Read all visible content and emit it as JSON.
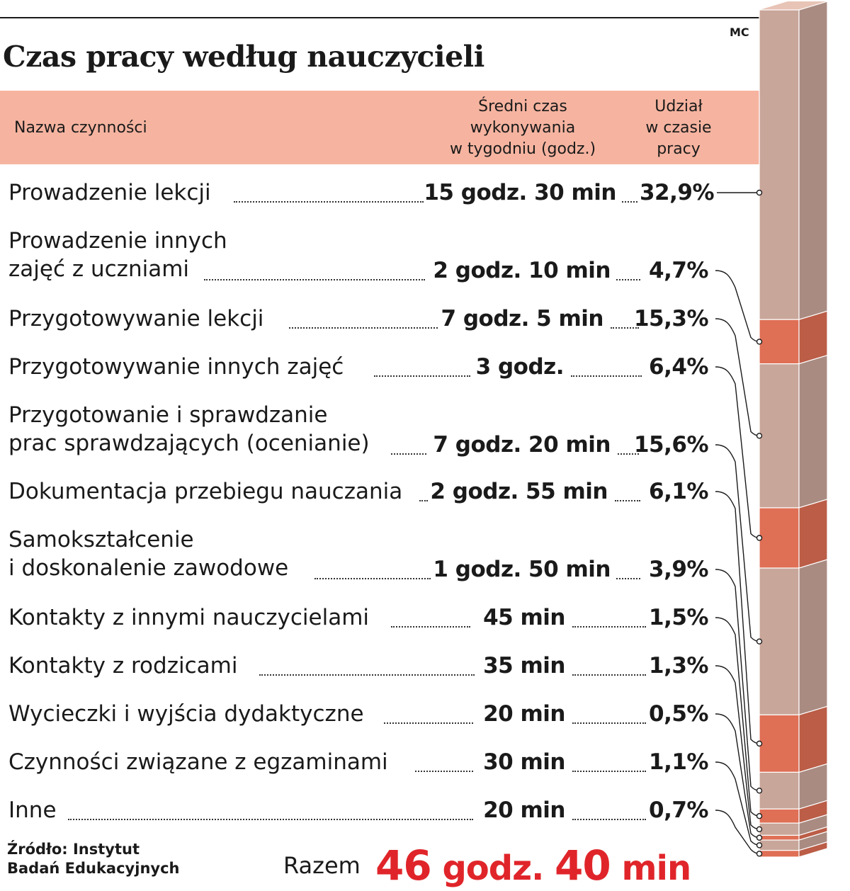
{
  "title": "Czas pracy według nauczycieli",
  "credit": "MC",
  "header": {
    "name": "Nazwa czynności",
    "time": "Średni czas\nwykonywania\nw tygodniu (godz.)",
    "share": "Udział\nw czasie\npracy"
  },
  "colors": {
    "header_band": "#f6b4a0",
    "segment_light": "#c9a69a",
    "segment_dark": "#df6f55",
    "total_accent": "#e0252a"
  },
  "chart_data": {
    "type": "table",
    "title": "Czas pracy według nauczycieli",
    "columns": [
      "Nazwa czynności",
      "Średni czas wykonywania w tygodniu (godz.)",
      "Udział w czasie pracy"
    ],
    "rows": [
      {
        "label": "Prowadzenie lekcji",
        "time": "15 godz. 30 min",
        "share": "32,9%",
        "share_value": 32.9
      },
      {
        "label": "Prowadzenie innych\nzajęć z uczniami",
        "time": "2 godz. 10 min",
        "share": "4,7%",
        "share_value": 4.7
      },
      {
        "label": "Przygotowywanie lekcji",
        "time": "7 godz. 5 min",
        "share": "15,3%",
        "share_value": 15.3
      },
      {
        "label": "Przygotowywanie innych zajęć",
        "time": "3 godz.",
        "share": "6,4%",
        "share_value": 6.4
      },
      {
        "label": "Przygotowanie i sprawdzanie\nprac sprawdzających (ocenianie)",
        "time": "7 godz. 20 min",
        "share": "15,6%",
        "share_value": 15.6
      },
      {
        "label": "Dokumentacja przebiegu nauczania",
        "time": "2 godz. 55 min",
        "share": "6,1%",
        "share_value": 6.1
      },
      {
        "label": "Samokształcenie\ni doskonalenie zawodowe",
        "time": "1 godz. 50 min",
        "share": "3,9%",
        "share_value": 3.9
      },
      {
        "label": "Kontakty z innymi nauczycielami",
        "time": "45 min",
        "share": "1,5%",
        "share_value": 1.5
      },
      {
        "label": "Kontakty z rodzicami",
        "time": "35 min",
        "share": "1,3%",
        "share_value": 1.3
      },
      {
        "label": "Wycieczki i wyjścia dydaktyczne",
        "time": "20 min",
        "share": "0,5%",
        "share_value": 0.5
      },
      {
        "label": "Czynności związane z egzaminami",
        "time": "30 min",
        "share": "1,1%",
        "share_value": 1.1
      },
      {
        "label": "Inne",
        "time": "20 min",
        "share": "0,7%",
        "share_value": 0.7
      }
    ],
    "total": {
      "label": "Razem",
      "hours": "46",
      "hours_unit": "godz.",
      "minutes": "40",
      "minutes_unit": "min"
    }
  },
  "source": "Źródło: Instytut\nBadań Edukacyjnych"
}
